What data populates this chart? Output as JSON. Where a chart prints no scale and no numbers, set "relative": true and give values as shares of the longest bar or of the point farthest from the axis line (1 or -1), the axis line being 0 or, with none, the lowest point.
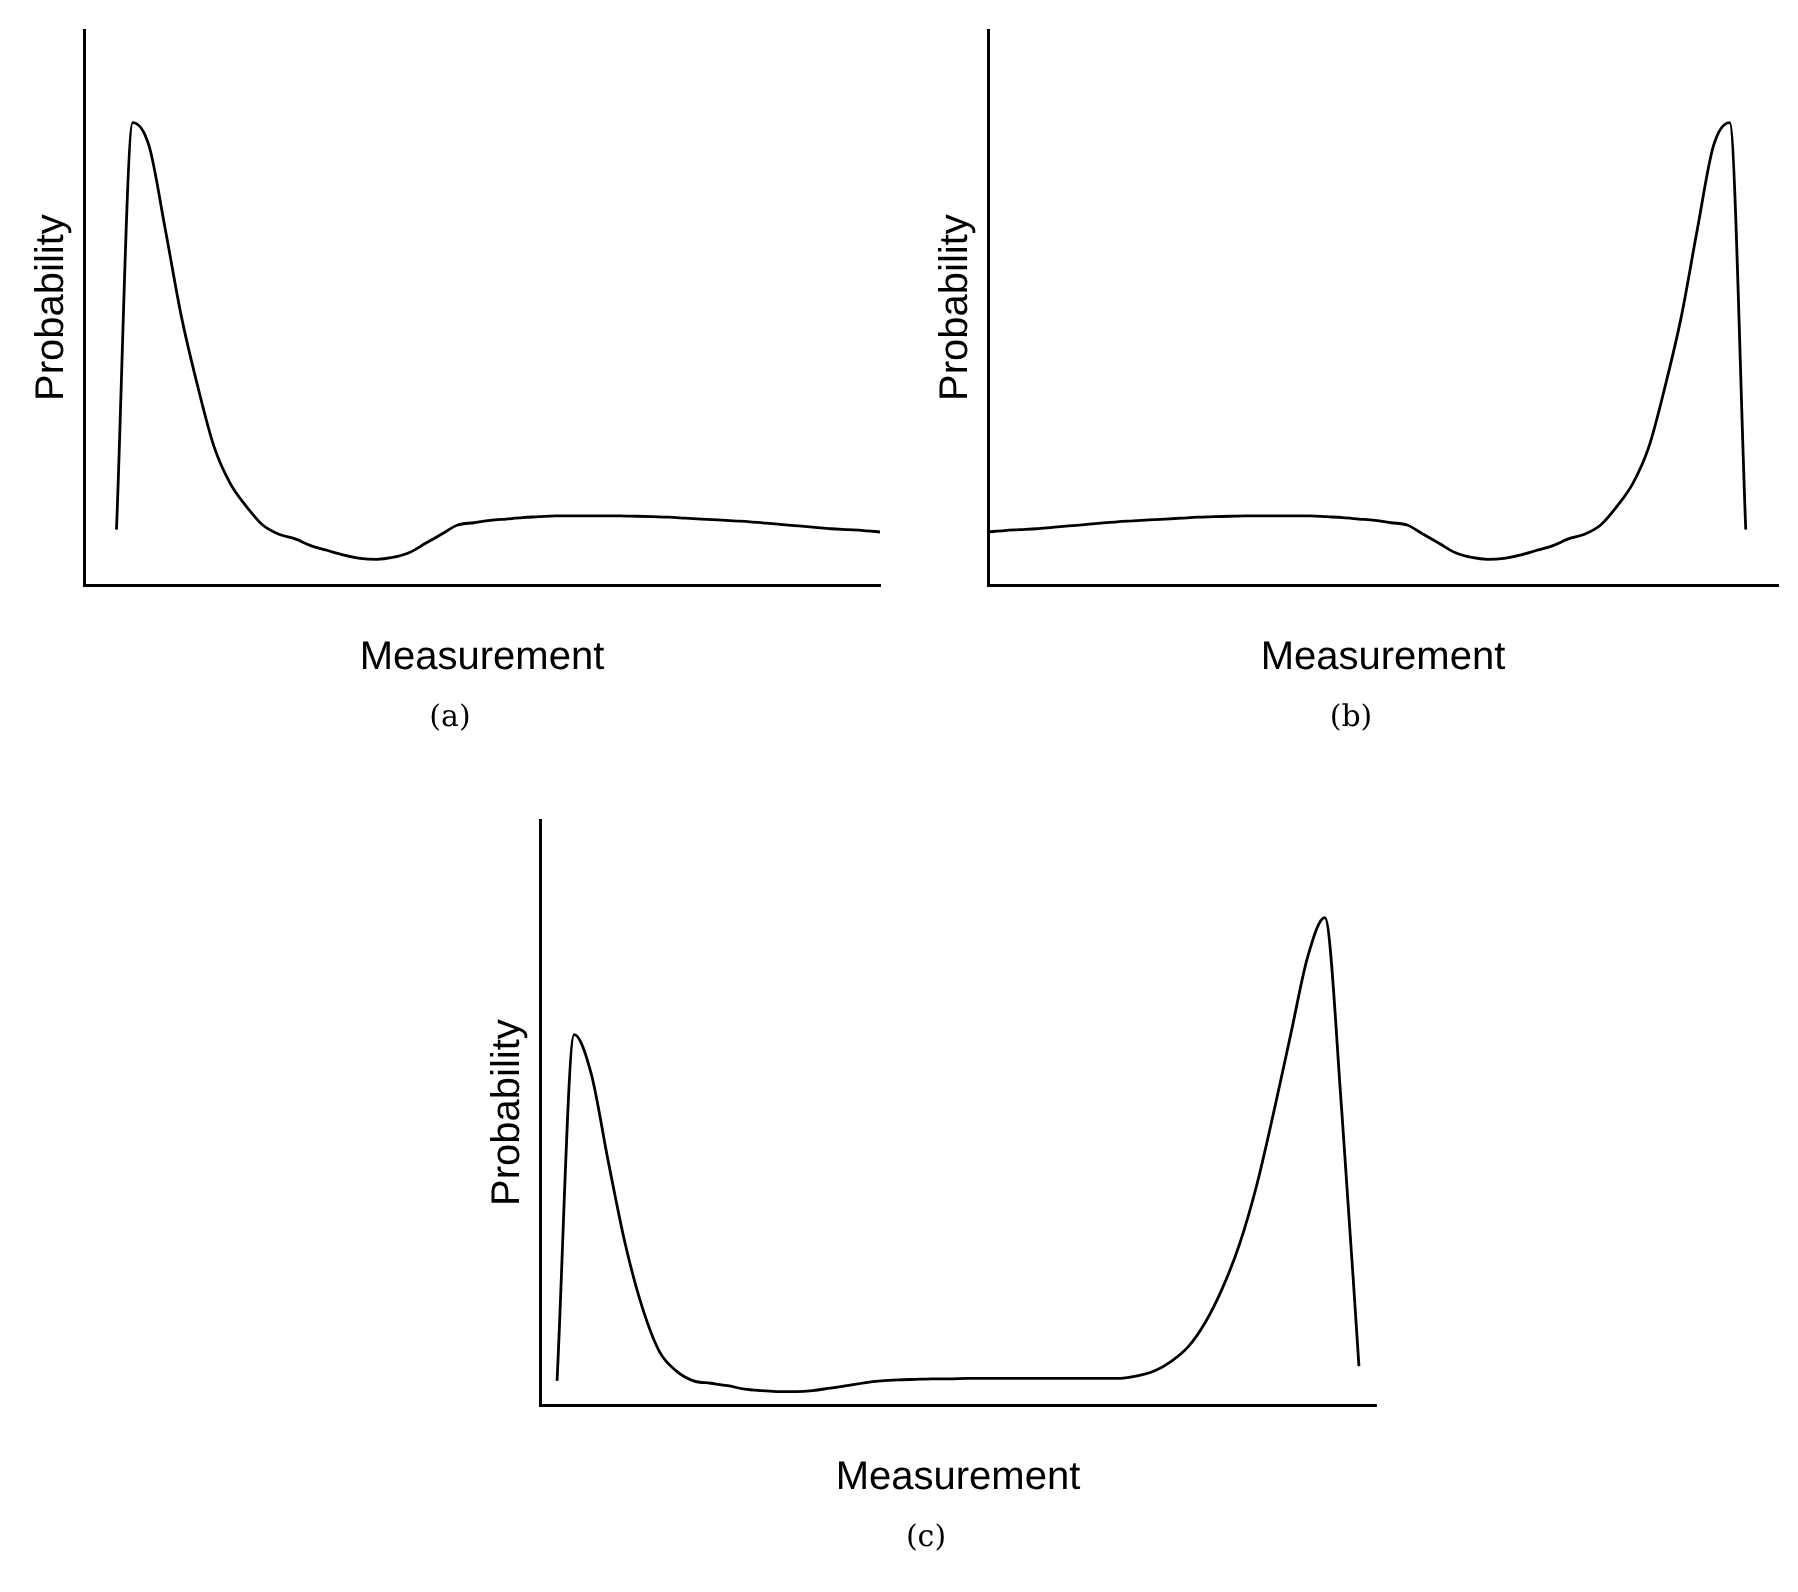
{
  "chart_data": [
    {
      "type": "line",
      "xlabel": "Measurement",
      "ylabel": "Probability",
      "annotations": [
        "(a)"
      ],
      "relative": true,
      "grid": false,
      "legend": false,
      "marker": "none",
      "line_style": "solid",
      "categories": [
        null,
        null,
        null,
        null,
        null,
        null,
        null,
        null,
        null,
        null,
        null,
        null,
        null,
        null,
        null,
        null,
        null,
        null,
        null,
        null,
        null,
        null,
        null,
        null,
        null,
        null,
        null,
        null,
        null,
        null,
        null,
        null,
        null,
        null,
        null,
        null,
        null,
        null,
        null,
        null,
        null,
        null,
        null,
        null,
        null,
        null,
        null,
        null,
        null,
        null
      ],
      "series": [
        {
          "color": "#000000",
          "values": [
            null,
            null,
            0.12,
            1,
            0.95,
            0.77,
            0.58,
            0.43,
            0.3,
            0.22,
            0.17,
            0.13,
            0.11,
            0.1,
            0.085,
            0.075,
            0.065,
            0.058,
            0.056,
            0.06,
            0.07,
            0.09,
            0.11,
            0.13,
            0.135,
            0.14,
            0.143,
            0.146,
            0.148,
            0.15,
            0.15,
            0.15,
            0.15,
            0.15,
            0.149,
            0.148,
            0.147,
            0.145,
            0.143,
            0.141,
            0.139,
            0.137,
            0.134,
            0.131,
            0.128,
            0.125,
            0.122,
            0.12,
            0.118,
            0.115
          ]
        }
      ]
    },
    {
      "type": "line",
      "xlabel": "Measurement",
      "ylabel": "Probability",
      "annotations": [
        "(b)"
      ],
      "relative": true,
      "grid": false,
      "legend": false,
      "marker": "none",
      "line_style": "solid",
      "categories": [
        null,
        null,
        null,
        null,
        null,
        null,
        null,
        null,
        null,
        null,
        null,
        null,
        null,
        null,
        null,
        null,
        null,
        null,
        null,
        null,
        null,
        null,
        null,
        null,
        null,
        null,
        null,
        null,
        null,
        null,
        null,
        null,
        null,
        null,
        null,
        null,
        null,
        null,
        null,
        null,
        null,
        null,
        null,
        null,
        null,
        null,
        null,
        null,
        null,
        null
      ],
      "series": [
        {
          "color": "#000000",
          "values": [
            0.115,
            0.118,
            0.12,
            0.122,
            0.125,
            0.128,
            0.131,
            0.134,
            0.137,
            0.139,
            0.141,
            0.143,
            0.145,
            0.147,
            0.148,
            0.149,
            0.15,
            0.15,
            0.15,
            0.15,
            0.15,
            0.148,
            0.146,
            0.143,
            0.14,
            0.135,
            0.13,
            0.11,
            0.09,
            0.07,
            0.06,
            0.056,
            0.058,
            0.065,
            0.075,
            0.085,
            0.1,
            0.11,
            0.13,
            0.17,
            0.22,
            0.3,
            0.43,
            0.58,
            0.77,
            0.95,
            1,
            0.12,
            null,
            null
          ]
        }
      ]
    },
    {
      "type": "line",
      "xlabel": "Measurement",
      "ylabel": "Probability",
      "annotations": [
        "(c)"
      ],
      "relative": true,
      "grid": false,
      "legend": false,
      "marker": "none",
      "line_style": "solid",
      "categories": [
        null,
        null,
        null,
        null,
        null,
        null,
        null,
        null,
        null,
        null,
        null,
        null,
        null,
        null,
        null,
        null,
        null,
        null,
        null,
        null,
        null,
        null,
        null,
        null,
        null,
        null,
        null,
        null,
        null,
        null,
        null,
        null,
        null,
        null,
        null,
        null,
        null,
        null,
        null,
        null,
        null,
        null,
        null,
        null,
        null,
        null,
        null,
        null,
        null,
        null
      ],
      "series": [
        {
          "color": "#000000",
          "values": [
            null,
            0.05,
            0.76,
            0.68,
            0.5,
            0.33,
            0.2,
            0.11,
            0.07,
            0.05,
            0.045,
            0.04,
            0.033,
            0.03,
            0.028,
            0.028,
            0.03,
            0.035,
            0.04,
            0.046,
            0.05,
            0.052,
            0.053,
            0.054,
            0.054,
            0.055,
            0.055,
            0.055,
            0.055,
            0.055,
            0.055,
            0.055,
            0.055,
            0.055,
            0.055,
            0.06,
            0.07,
            0.09,
            0.12,
            0.17,
            0.24,
            0.33,
            0.45,
            0.6,
            0.76,
            0.92,
            1,
            0.6,
            0.08,
            null
          ]
        }
      ]
    }
  ]
}
